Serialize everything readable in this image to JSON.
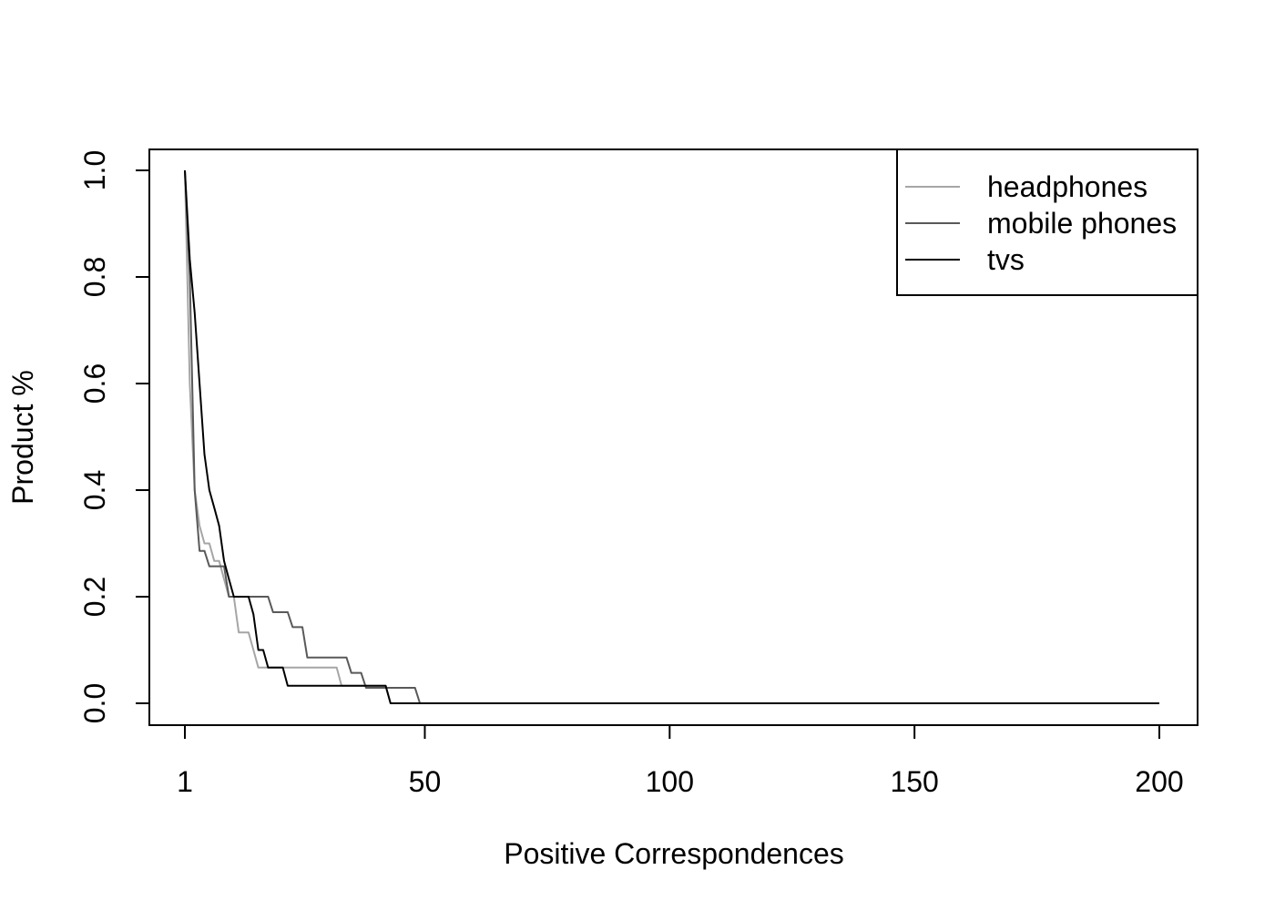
{
  "chart_data": {
    "type": "line",
    "title": "",
    "xlabel": "Positive Correspondences",
    "ylabel": "Product %",
    "xlim": [
      1,
      200
    ],
    "ylim": [
      0,
      1
    ],
    "x_ticks": [
      1,
      50,
      100,
      150,
      200
    ],
    "x_tick_labels": [
      "1",
      "50",
      "100",
      "150",
      "200"
    ],
    "y_ticks": [
      0,
      0.2,
      0.4,
      0.6,
      0.8,
      1.0
    ],
    "y_tick_labels": [
      "0.0",
      "0.2",
      "0.4",
      "0.6",
      "0.8",
      "1.0"
    ],
    "grid": false,
    "legend_position": "top-right",
    "series": [
      {
        "name": "headphones",
        "color": "#a6a6a6",
        "points": [
          [
            1,
            1.0
          ],
          [
            2,
            0.6
          ],
          [
            3,
            0.4
          ],
          [
            4,
            0.333
          ],
          [
            5,
            0.3
          ],
          [
            6,
            0.3
          ],
          [
            7,
            0.267
          ],
          [
            8,
            0.267
          ],
          [
            9,
            0.233
          ],
          [
            10,
            0.2
          ],
          [
            11,
            0.2
          ],
          [
            12,
            0.133
          ],
          [
            14,
            0.133
          ],
          [
            15,
            0.1
          ],
          [
            16,
            0.067
          ],
          [
            22,
            0.067
          ],
          [
            32,
            0.067
          ],
          [
            33,
            0.033
          ],
          [
            42,
            0.033
          ],
          [
            43,
            0.0
          ],
          [
            200,
            0.0
          ]
        ]
      },
      {
        "name": "mobile phones",
        "color": "#595959",
        "points": [
          [
            1,
            1.0
          ],
          [
            2,
            0.8
          ],
          [
            3,
            0.4
          ],
          [
            4,
            0.286
          ],
          [
            5,
            0.286
          ],
          [
            6,
            0.257
          ],
          [
            9,
            0.257
          ],
          [
            10,
            0.2
          ],
          [
            18,
            0.2
          ],
          [
            19,
            0.171
          ],
          [
            22,
            0.171
          ],
          [
            23,
            0.143
          ],
          [
            25,
            0.143
          ],
          [
            26,
            0.086
          ],
          [
            34,
            0.086
          ],
          [
            35,
            0.057
          ],
          [
            37,
            0.057
          ],
          [
            38,
            0.029
          ],
          [
            48,
            0.029
          ],
          [
            49,
            0.0
          ],
          [
            200,
            0.0
          ]
        ]
      },
      {
        "name": "tvs",
        "color": "#000000",
        "points": [
          [
            1,
            1.0
          ],
          [
            2,
            0.833
          ],
          [
            3,
            0.733
          ],
          [
            4,
            0.6
          ],
          [
            5,
            0.467
          ],
          [
            6,
            0.4
          ],
          [
            7,
            0.367
          ],
          [
            8,
            0.333
          ],
          [
            9,
            0.267
          ],
          [
            10,
            0.233
          ],
          [
            11,
            0.2
          ],
          [
            14,
            0.2
          ],
          [
            15,
            0.167
          ],
          [
            16,
            0.1
          ],
          [
            17,
            0.1
          ],
          [
            18,
            0.067
          ],
          [
            21,
            0.067
          ],
          [
            22,
            0.033
          ],
          [
            42,
            0.033
          ],
          [
            43,
            0.0
          ],
          [
            200,
            0.0
          ]
        ]
      }
    ]
  }
}
